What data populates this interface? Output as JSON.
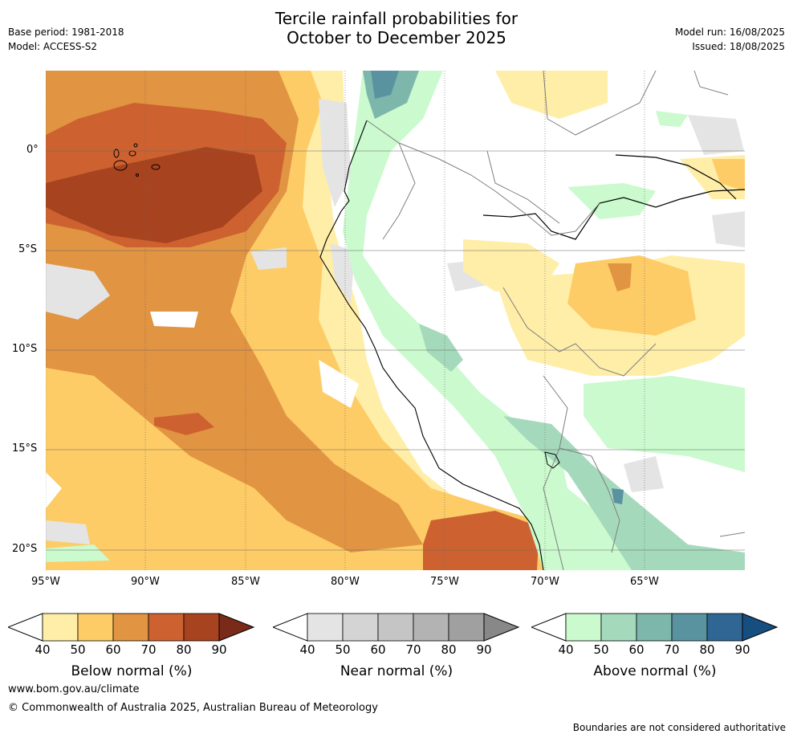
{
  "title_line1": "Tercile rainfall probabilities for",
  "title_line2": "October to December 2025",
  "meta_left": {
    "base_period": "Base period: 1981-2018",
    "model": "Model: ACCESS-S2"
  },
  "meta_right": {
    "model_run": "Model run: 16/08/2025",
    "issued": "Issued: 18/08/2025"
  },
  "axes": {
    "lon_labels": [
      "95°W",
      "90°W",
      "85°W",
      "80°W",
      "75°W",
      "70°W",
      "65°W"
    ],
    "lat_labels": [
      "0°",
      "5°S",
      "10°S",
      "15°S",
      "20°S"
    ]
  },
  "colorbars": [
    {
      "title": "Below normal (%)",
      "ticks": [
        "40",
        "50",
        "60",
        "70",
        "80",
        "90"
      ],
      "colors": [
        "#ffeea8",
        "#fdcc66",
        "#e19442",
        "#cd6230",
        "#a7431f"
      ],
      "extend_color": "#7a2a18"
    },
    {
      "title": "Near normal (%)",
      "ticks": [
        "40",
        "50",
        "60",
        "70",
        "80",
        "90"
      ],
      "colors": [
        "#e4e4e4",
        "#d4d4d4",
        "#c5c5c5",
        "#b3b3b3",
        "#a0a0a0"
      ],
      "extend_color": "#888888"
    },
    {
      "title": "Above normal (%)",
      "ticks": [
        "40",
        "50",
        "60",
        "70",
        "80",
        "90"
      ],
      "colors": [
        "#cafacd",
        "#a5d9bc",
        "#7db7ac",
        "#5a93a0",
        "#2f6694"
      ],
      "extend_color": "#174e80"
    }
  ],
  "footer": {
    "url": "www.bom.gov.au/climate",
    "copyright": "© Commonwealth of Australia 2025, Australian Bureau of Meteorology",
    "disclaimer": "Boundaries are not considered authoritative"
  }
}
